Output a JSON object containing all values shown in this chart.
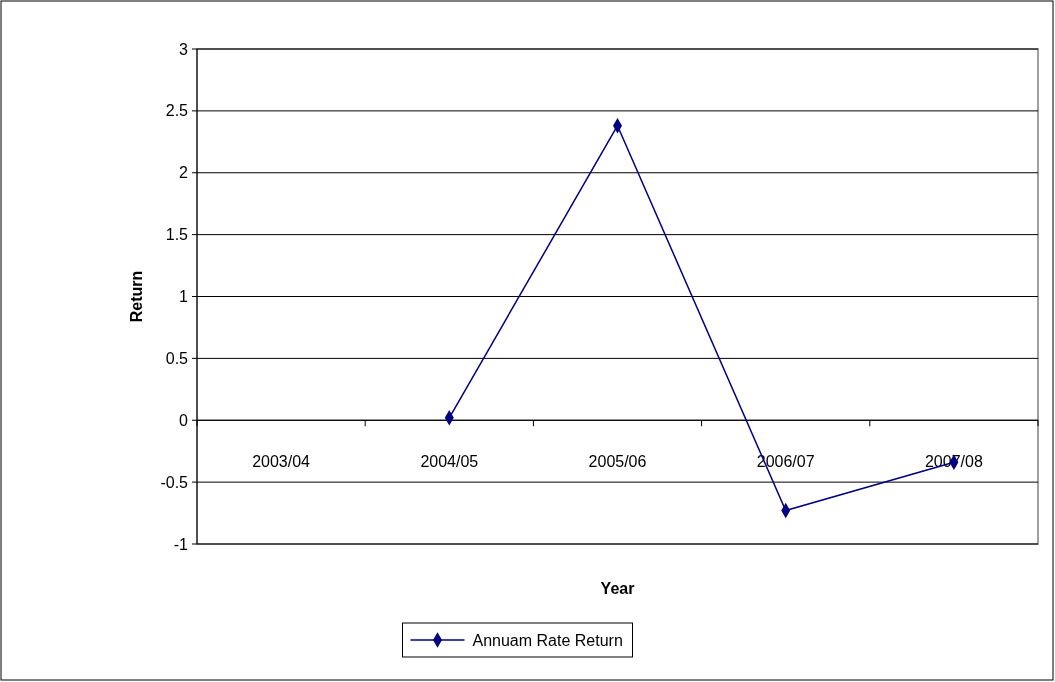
{
  "chart_data": {
    "type": "line",
    "xlabel": "Year",
    "ylabel": "Return",
    "categories": [
      "2003/04",
      "2004/05",
      "2005/06",
      "2006/07",
      "2007/08"
    ],
    "series": [
      {
        "name": "Annuam Rate Return",
        "color": "#000080",
        "values": [
          null,
          0.02,
          2.38,
          -0.73,
          -0.34
        ]
      }
    ],
    "ylim": [
      -1,
      3
    ],
    "yticks": [
      -1,
      -0.5,
      0,
      0.5,
      1,
      1.5,
      2,
      2.5,
      3
    ],
    "grid": "y",
    "legend": "bottom",
    "marker": "diamond"
  }
}
